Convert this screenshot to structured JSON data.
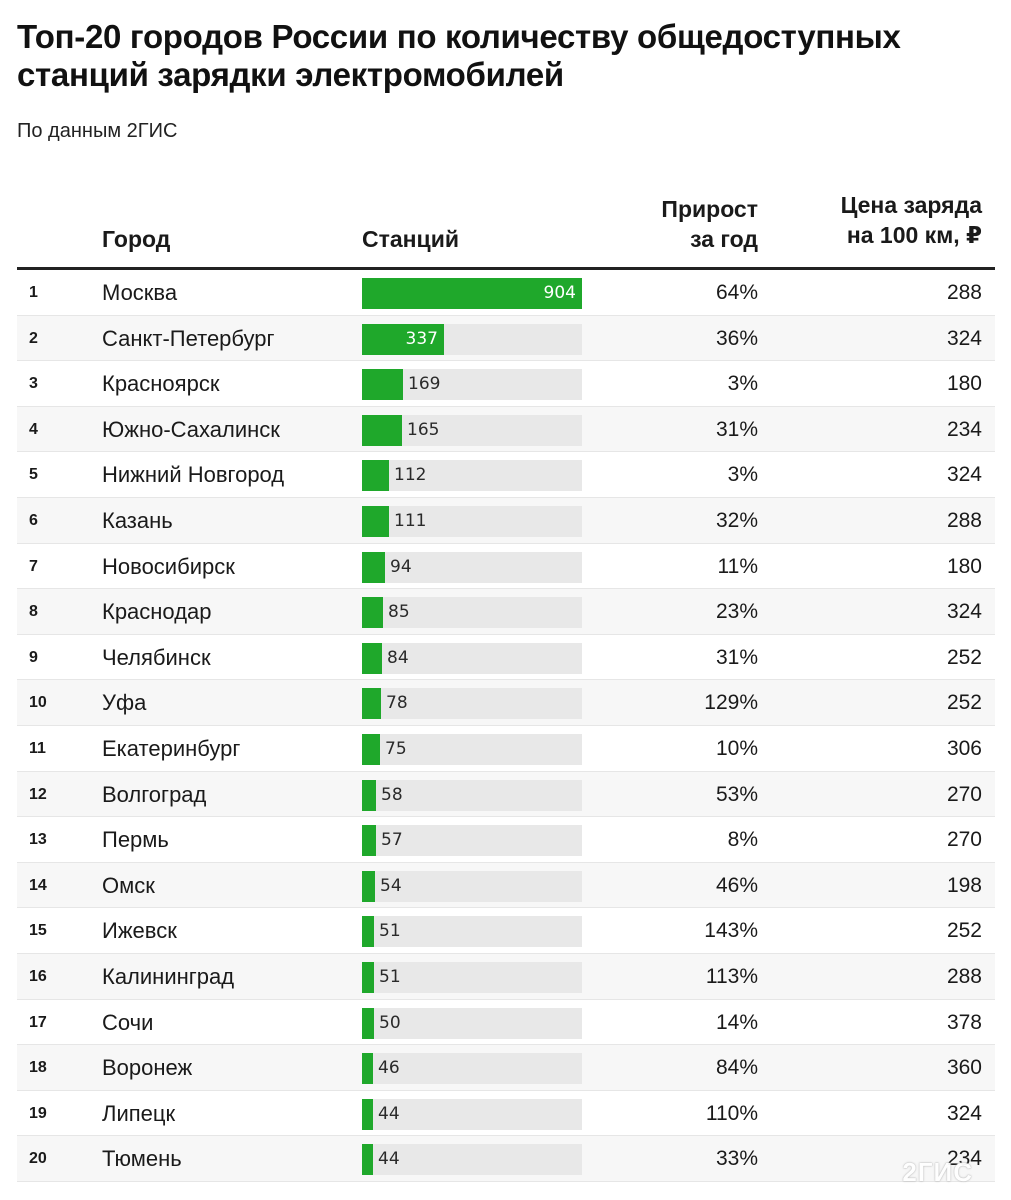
{
  "title": "Топ-20 городов России по количеству общедоступных станций зарядки электромобилей",
  "subtitle": "По данным 2ГИС",
  "columns": {
    "city": "Город",
    "stations": "Станций",
    "growth_line1": "Прирост",
    "growth_line2": "за год",
    "price_line1": "Цена заряда",
    "price_line2": "на 100 км, ₽"
  },
  "colors": {
    "bar": "#1fa82b",
    "track": "#e8e8e8",
    "rule": "#222222"
  },
  "watermark": "2ГИС",
  "chart_data": {
    "type": "table",
    "title": "Топ-20 городов России по количеству общедоступных станций зарядки электромобилей",
    "subtitle": "По данным 2ГИС",
    "bar_max": 904,
    "rows": [
      {
        "rank": "1",
        "city": "Москва",
        "stations": 904,
        "growth": "64%",
        "price": "288"
      },
      {
        "rank": "2",
        "city": "Санкт-Петербург",
        "stations": 337,
        "growth": "36%",
        "price": "324"
      },
      {
        "rank": "3",
        "city": "Красноярск",
        "stations": 169,
        "growth": "3%",
        "price": "180"
      },
      {
        "rank": "4",
        "city": "Южно-Сахалинск",
        "stations": 165,
        "growth": "31%",
        "price": "234"
      },
      {
        "rank": "5",
        "city": "Нижний Новгород",
        "stations": 112,
        "growth": "3%",
        "price": "324"
      },
      {
        "rank": "6",
        "city": "Казань",
        "stations": 111,
        "growth": "32%",
        "price": "288"
      },
      {
        "rank": "7",
        "city": "Новосибирск",
        "stations": 94,
        "growth": "11%",
        "price": "180"
      },
      {
        "rank": "8",
        "city": "Краснодар",
        "stations": 85,
        "growth": "23%",
        "price": "324"
      },
      {
        "rank": "9",
        "city": "Челябинск",
        "stations": 84,
        "growth": "31%",
        "price": "252"
      },
      {
        "rank": "10",
        "city": "Уфа",
        "stations": 78,
        "growth": "129%",
        "price": "252"
      },
      {
        "rank": "11",
        "city": "Екатеринбург",
        "stations": 75,
        "growth": "10%",
        "price": "306"
      },
      {
        "rank": "12",
        "city": "Волгоград",
        "stations": 58,
        "growth": "53%",
        "price": "270"
      },
      {
        "rank": "13",
        "city": "Пермь",
        "stations": 57,
        "growth": "8%",
        "price": "270"
      },
      {
        "rank": "14",
        "city": "Омск",
        "stations": 54,
        "growth": "46%",
        "price": "198"
      },
      {
        "rank": "15",
        "city": "Ижевск",
        "stations": 51,
        "growth": "143%",
        "price": "252"
      },
      {
        "rank": "16",
        "city": "Калининград",
        "stations": 51,
        "growth": "113%",
        "price": "288"
      },
      {
        "rank": "17",
        "city": "Сочи",
        "stations": 50,
        "growth": "14%",
        "price": "378"
      },
      {
        "rank": "18",
        "city": "Воронеж",
        "stations": 46,
        "growth": "84%",
        "price": "360"
      },
      {
        "rank": "19",
        "city": "Липецк",
        "stations": 44,
        "growth": "110%",
        "price": "324"
      },
      {
        "rank": "20",
        "city": "Тюмень",
        "stations": 44,
        "growth": "33%",
        "price": "234"
      }
    ]
  }
}
